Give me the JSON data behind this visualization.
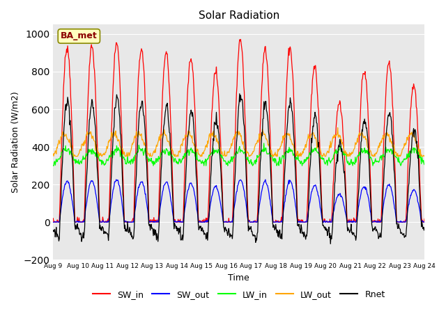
{
  "title": "Solar Radiation",
  "ylabel": "Solar Radiation (W/m2)",
  "xlabel": "Time",
  "ylim": [
    -200,
    1050
  ],
  "yticks": [
    -200,
    0,
    200,
    400,
    600,
    800,
    1000
  ],
  "station_label": "BA_met",
  "legend_entries": [
    "SW_in",
    "SW_out",
    "LW_in",
    "LW_out",
    "Rnet"
  ],
  "colors": {
    "SW_in": "red",
    "SW_out": "blue",
    "LW_in": "lime",
    "LW_out": "orange",
    "Rnet": "black"
  },
  "xtick_labels": [
    "Aug 9",
    "Aug 10",
    "Aug 11",
    "Aug 12",
    "Aug 13",
    "Aug 14",
    "Aug 15",
    "Aug 16",
    "Aug 17",
    "Aug 18",
    "Aug 19",
    "Aug 20",
    "Aug 21",
    "Aug 22",
    "Aug 23",
    "Aug 24"
  ],
  "fig_bg": "#ffffff",
  "plot_bg": "#e8e8e8"
}
